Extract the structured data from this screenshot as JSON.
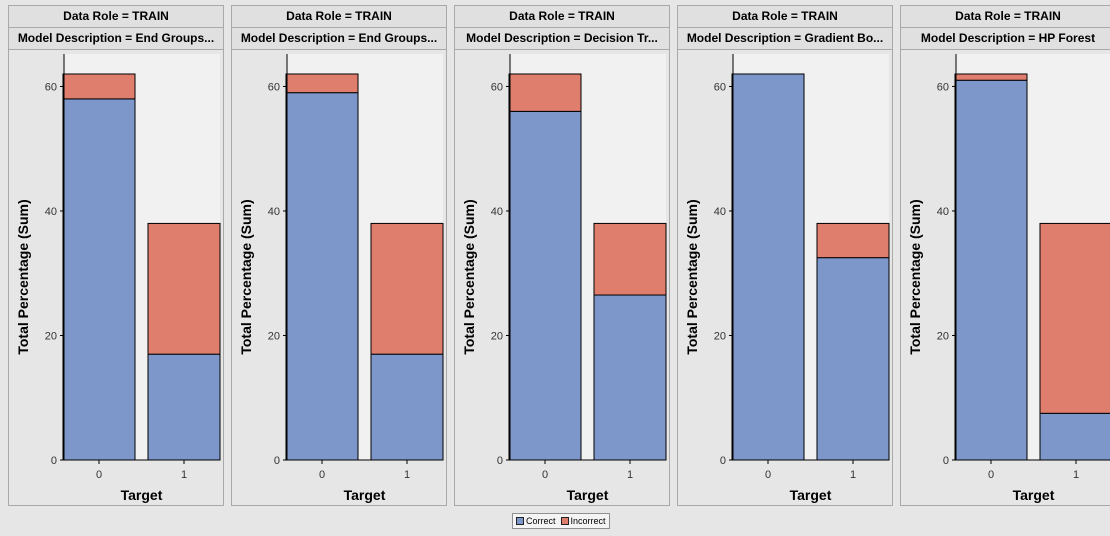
{
  "chart_data": {
    "type": "bar",
    "stacked": true,
    "colors": {
      "Correct": "#7d97cb",
      "Incorrect": "#e07e6e",
      "plot_background": "#f1f1f1"
    },
    "panels": [
      {
        "row_header": "Data Role = TRAIN",
        "col_header": "Model Description = End Groups...",
        "xlabel": "Target",
        "ylabel": "Total Percentage (Sum)",
        "categories": [
          "0",
          "1"
        ],
        "series": [
          {
            "name": "Correct",
            "values": [
              58,
              17
            ]
          },
          {
            "name": "Incorrect",
            "values": [
              4,
              21
            ]
          }
        ]
      },
      {
        "row_header": "Data Role = TRAIN",
        "col_header": "Model Description = End Groups...",
        "xlabel": "Target",
        "ylabel": "Total Percentage (Sum)",
        "categories": [
          "0",
          "1"
        ],
        "series": [
          {
            "name": "Correct",
            "values": [
              59,
              17
            ]
          },
          {
            "name": "Incorrect",
            "values": [
              3,
              21
            ]
          }
        ]
      },
      {
        "row_header": "Data Role = TRAIN",
        "col_header": "Model Description = Decision Tr...",
        "xlabel": "Target",
        "ylabel": "Total Percentage (Sum)",
        "categories": [
          "0",
          "1"
        ],
        "series": [
          {
            "name": "Correct",
            "values": [
              56,
              26.5
            ]
          },
          {
            "name": "Incorrect",
            "values": [
              6,
              11.5
            ]
          }
        ]
      },
      {
        "row_header": "Data Role = TRAIN",
        "col_header": "Model Description = Gradient Bo...",
        "xlabel": "Target",
        "ylabel": "Total Percentage (Sum)",
        "categories": [
          "0",
          "1"
        ],
        "series": [
          {
            "name": "Correct",
            "values": [
              62,
              32.5
            ]
          },
          {
            "name": "Incorrect",
            "values": [
              0,
              5.5
            ]
          }
        ]
      },
      {
        "row_header": "Data Role = TRAIN",
        "col_header": "Model Description = HP Forest",
        "xlabel": "Target",
        "ylabel": "Total Percentage (Sum)",
        "categories": [
          "0",
          "1"
        ],
        "series": [
          {
            "name": "Correct",
            "values": [
              61,
              7.5
            ]
          },
          {
            "name": "Incorrect",
            "values": [
              1,
              30.5
            ]
          }
        ]
      }
    ],
    "ylim": [
      0,
      63
    ],
    "yticks": [
      0,
      20,
      40,
      60
    ],
    "grid": false,
    "legend": {
      "position": "bottom-center",
      "entries": [
        "Correct",
        "Incorrect"
      ]
    }
  }
}
